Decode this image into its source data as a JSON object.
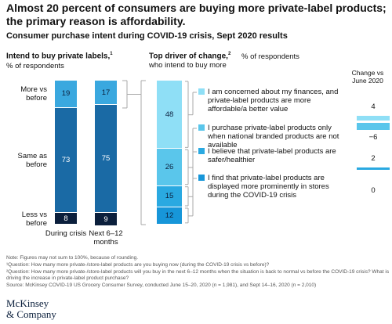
{
  "title": "Almost 20 percent of consumers are buying more private-label products; the primary reason is affordability.",
  "subtitle": "Consumer purchase intent during COVID-19 crisis, Sept 2020 results",
  "chart_data": [
    {
      "type": "stacked_bar",
      "title": "Intend to buy private labels,",
      "title_sup": "1",
      "subtitle": "% of respondents",
      "categories": [
        "During crisis",
        "Next 6–12 months"
      ],
      "series": [
        {
          "name": "More vs before",
          "color": "#3aa8df",
          "values": [
            19,
            17
          ]
        },
        {
          "name": "Same as before",
          "color": "#1a6aa5",
          "values": [
            73,
            75
          ]
        },
        {
          "name": "Less vs before",
          "color": "#0b1f3c",
          "values": [
            8,
            9
          ]
        }
      ]
    },
    {
      "type": "stacked_bar",
      "title": "Top driver of change,",
      "title_sup": "2",
      "subtitle": "% of respondents who intend to buy more",
      "series": [
        {
          "name": "I am concerned about my finances, and private-label products are more affordable/a better value",
          "color": "#8fdff6",
          "values": [
            48
          ]
        },
        {
          "name": "I purchase private-label products only when national branded products are not available",
          "color": "#5ac6eb",
          "values": [
            26
          ]
        },
        {
          "name": "I believe that private-label products are safer/healthier",
          "color": "#2aa9e1",
          "values": [
            15
          ]
        },
        {
          "name": "I find that private-label products are displayed more prominently in stores during the COVID-19 crisis",
          "color": "#1796d9",
          "values": [
            12
          ]
        }
      ],
      "change_title": "Change vs June 2020",
      "change": [
        4,
        -6,
        2,
        0
      ],
      "change_labels": [
        "4",
        "−6",
        "2",
        "0"
      ]
    }
  ],
  "notes": [
    "Note: Figures may not sum to 100%, because of rounding.",
    "¹Question: How many more private-/store-label products are you buying now (during the COVID-19 crisis vs before)?",
    "²Question: How many more private-/store-label products will you buy in the next 6–12 months when the situation is back to normal vs before the COVID-19 crisis? What is driving the increase in private-label product purchase?",
    "Source: McKinsey COVID-19 US Grocery Consumer Survey, conducted June 15–20, 2020 (n = 1,981), and Sept 14–16, 2020 (n = 2,010)"
  ],
  "logo": [
    "McKinsey",
    "& Company"
  ]
}
